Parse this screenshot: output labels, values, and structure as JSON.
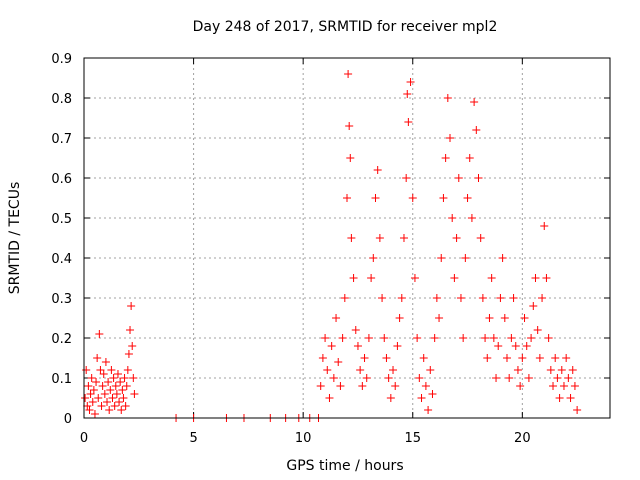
{
  "chart_data": {
    "type": "scatter",
    "title": "Day 248 of 2017, SRMTID for receiver mpl2",
    "xlabel": "GPS time / hours",
    "ylabel": "SRMTID / TECUs",
    "xlim": [
      0,
      24
    ],
    "ylim": [
      0,
      0.9
    ],
    "x_ticks": [
      "0",
      "5",
      "10",
      "15",
      "20"
    ],
    "y_ticks": [
      "0",
      "0.1",
      "0.2",
      "0.3",
      "0.4",
      "0.5",
      "0.6",
      "0.7",
      "0.8",
      "0.9"
    ],
    "grid": true,
    "marker": "plus",
    "color": "#ff0000",
    "series": [
      {
        "name": "mpl2",
        "points": [
          [
            0.05,
            0.05
          ],
          [
            0.1,
            0.12
          ],
          [
            0.15,
            0.03
          ],
          [
            0.2,
            0.08
          ],
          [
            0.25,
            0.02
          ],
          [
            0.3,
            0.06
          ],
          [
            0.35,
            0.1
          ],
          [
            0.4,
            0.04
          ],
          [
            0.45,
            0.07
          ],
          [
            0.5,
            0.01
          ],
          [
            0.55,
            0.09
          ],
          [
            0.6,
            0.15
          ],
          [
            0.65,
            0.05
          ],
          [
            0.7,
            0.21
          ],
          [
            0.75,
            0.12
          ],
          [
            0.8,
            0.03
          ],
          [
            0.85,
            0.08
          ],
          [
            0.9,
            0.11
          ],
          [
            0.95,
            0.06
          ],
          [
            1.0,
            0.14
          ],
          [
            1.05,
            0.04
          ],
          [
            1.1,
            0.09
          ],
          [
            1.15,
            0.02
          ],
          [
            1.2,
            0.07
          ],
          [
            1.25,
            0.12
          ],
          [
            1.3,
            0.05
          ],
          [
            1.35,
            0.1
          ],
          [
            1.4,
            0.03
          ],
          [
            1.45,
            0.08
          ],
          [
            1.5,
            0.06
          ],
          [
            1.55,
            0.11
          ],
          [
            1.6,
            0.04
          ],
          [
            1.65,
            0.09
          ],
          [
            1.7,
            0.02
          ],
          [
            1.75,
            0.07
          ],
          [
            1.8,
            0.05
          ],
          [
            1.85,
            0.1
          ],
          [
            1.9,
            0.03
          ],
          [
            1.95,
            0.08
          ],
          [
            2.0,
            0.12
          ],
          [
            2.05,
            0.16
          ],
          [
            2.1,
            0.22
          ],
          [
            2.15,
            0.28
          ],
          [
            2.2,
            0.18
          ],
          [
            2.25,
            0.1
          ],
          [
            2.3,
            0.06
          ],
          [
            4.2,
            0.0
          ],
          [
            5.0,
            0.0
          ],
          [
            6.5,
            0.0
          ],
          [
            7.3,
            0.0
          ],
          [
            8.5,
            0.0
          ],
          [
            9.2,
            0.0
          ],
          [
            9.8,
            0.0
          ],
          [
            10.3,
            0.0
          ],
          [
            10.7,
            0.0
          ],
          [
            10.8,
            0.08
          ],
          [
            10.9,
            0.15
          ],
          [
            11.0,
            0.2
          ],
          [
            11.1,
            0.12
          ],
          [
            11.2,
            0.05
          ],
          [
            11.3,
            0.18
          ],
          [
            11.4,
            0.1
          ],
          [
            11.5,
            0.25
          ],
          [
            11.6,
            0.14
          ],
          [
            11.7,
            0.08
          ],
          [
            11.8,
            0.2
          ],
          [
            11.9,
            0.3
          ],
          [
            12.0,
            0.55
          ],
          [
            12.05,
            0.86
          ],
          [
            12.1,
            0.73
          ],
          [
            12.15,
            0.65
          ],
          [
            12.2,
            0.45
          ],
          [
            12.3,
            0.35
          ],
          [
            12.4,
            0.22
          ],
          [
            12.5,
            0.18
          ],
          [
            12.6,
            0.12
          ],
          [
            12.7,
            0.08
          ],
          [
            12.8,
            0.15
          ],
          [
            12.9,
            0.1
          ],
          [
            13.0,
            0.2
          ],
          [
            13.1,
            0.35
          ],
          [
            13.2,
            0.4
          ],
          [
            13.3,
            0.55
          ],
          [
            13.4,
            0.62
          ],
          [
            13.5,
            0.45
          ],
          [
            13.6,
            0.3
          ],
          [
            13.7,
            0.2
          ],
          [
            13.8,
            0.15
          ],
          [
            13.9,
            0.1
          ],
          [
            14.0,
            0.05
          ],
          [
            14.1,
            0.12
          ],
          [
            14.2,
            0.08
          ],
          [
            14.3,
            0.18
          ],
          [
            14.4,
            0.25
          ],
          [
            14.5,
            0.3
          ],
          [
            14.6,
            0.45
          ],
          [
            14.7,
            0.6
          ],
          [
            14.75,
            0.81
          ],
          [
            14.8,
            0.74
          ],
          [
            14.9,
            0.84
          ],
          [
            15.0,
            0.55
          ],
          [
            15.1,
            0.35
          ],
          [
            15.2,
            0.2
          ],
          [
            15.3,
            0.1
          ],
          [
            15.4,
            0.05
          ],
          [
            15.5,
            0.15
          ],
          [
            15.6,
            0.08
          ],
          [
            15.7,
            0.02
          ],
          [
            15.8,
            0.12
          ],
          [
            15.9,
            0.06
          ],
          [
            16.0,
            0.2
          ],
          [
            16.1,
            0.3
          ],
          [
            16.2,
            0.25
          ],
          [
            16.3,
            0.4
          ],
          [
            16.4,
            0.55
          ],
          [
            16.5,
            0.65
          ],
          [
            16.6,
            0.8
          ],
          [
            16.7,
            0.7
          ],
          [
            16.8,
            0.5
          ],
          [
            16.9,
            0.35
          ],
          [
            17.0,
            0.45
          ],
          [
            17.1,
            0.6
          ],
          [
            17.2,
            0.3
          ],
          [
            17.3,
            0.2
          ],
          [
            17.4,
            0.4
          ],
          [
            17.5,
            0.55
          ],
          [
            17.6,
            0.65
          ],
          [
            17.7,
            0.5
          ],
          [
            17.8,
            0.79
          ],
          [
            17.9,
            0.72
          ],
          [
            18.0,
            0.6
          ],
          [
            18.1,
            0.45
          ],
          [
            18.2,
            0.3
          ],
          [
            18.3,
            0.2
          ],
          [
            18.4,
            0.15
          ],
          [
            18.5,
            0.25
          ],
          [
            18.6,
            0.35
          ],
          [
            18.7,
            0.2
          ],
          [
            18.8,
            0.1
          ],
          [
            18.9,
            0.18
          ],
          [
            19.0,
            0.3
          ],
          [
            19.1,
            0.4
          ],
          [
            19.2,
            0.25
          ],
          [
            19.3,
            0.15
          ],
          [
            19.4,
            0.1
          ],
          [
            19.5,
            0.2
          ],
          [
            19.6,
            0.3
          ],
          [
            19.7,
            0.18
          ],
          [
            19.8,
            0.12
          ],
          [
            19.9,
            0.08
          ],
          [
            20.0,
            0.15
          ],
          [
            20.1,
            0.25
          ],
          [
            20.2,
            0.18
          ],
          [
            20.3,
            0.1
          ],
          [
            20.4,
            0.2
          ],
          [
            20.5,
            0.28
          ],
          [
            20.6,
            0.35
          ],
          [
            20.7,
            0.22
          ],
          [
            20.8,
            0.15
          ],
          [
            20.9,
            0.3
          ],
          [
            21.0,
            0.48
          ],
          [
            21.1,
            0.35
          ],
          [
            21.2,
            0.2
          ],
          [
            21.3,
            0.12
          ],
          [
            21.4,
            0.08
          ],
          [
            21.5,
            0.15
          ],
          [
            21.6,
            0.1
          ],
          [
            21.7,
            0.05
          ],
          [
            21.8,
            0.12
          ],
          [
            21.9,
            0.08
          ],
          [
            22.0,
            0.15
          ],
          [
            22.1,
            0.1
          ],
          [
            22.2,
            0.05
          ],
          [
            22.3,
            0.12
          ],
          [
            22.4,
            0.08
          ],
          [
            22.5,
            0.02
          ]
        ]
      }
    ]
  }
}
